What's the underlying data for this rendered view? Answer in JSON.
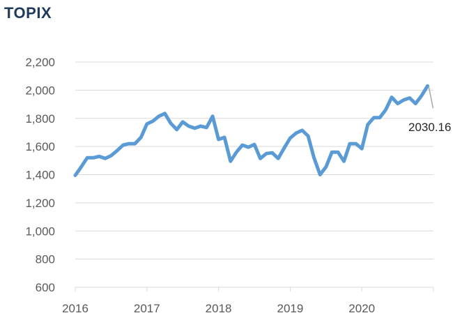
{
  "chart_data": {
    "type": "line",
    "title": "TOPIX",
    "xlabel": "",
    "ylabel": "",
    "ylim": [
      600,
      2200
    ],
    "xlim": [
      2016.0,
      2021.0
    ],
    "y_ticks": [
      600,
      800,
      1000,
      1200,
      1400,
      1600,
      1800,
      2000,
      2200
    ],
    "y_tick_labels": [
      "600",
      "800",
      "1,000",
      "1,200",
      "1,400",
      "1,600",
      "1,800",
      "2,000",
      "2,200"
    ],
    "x_ticks": [
      2016,
      2017,
      2018,
      2019,
      2020
    ],
    "x_tick_labels": [
      "2016",
      "2017",
      "2018",
      "2019",
      "2020"
    ],
    "grid": "horizontal",
    "line_color": "#5b9bd5",
    "series": [
      {
        "x": [
          2016.0,
          2016.083,
          2016.167,
          2016.25,
          2016.333,
          2016.417,
          2016.5,
          2016.583,
          2016.667,
          2016.75,
          2016.833,
          2016.917,
          2017.0,
          2017.083,
          2017.167,
          2017.25,
          2017.333,
          2017.417,
          2017.5,
          2017.583,
          2017.667,
          2017.75,
          2017.833,
          2017.917,
          2018.0,
          2018.083,
          2018.167,
          2018.25,
          2018.333,
          2018.417,
          2018.5,
          2018.583,
          2018.667,
          2018.75,
          2018.833,
          2018.917,
          2019.0,
          2019.083,
          2019.167,
          2019.25,
          2019.333,
          2019.417,
          2019.5,
          2019.583,
          2019.667,
          2019.75,
          2019.833,
          2019.917,
          2020.0,
          2020.083,
          2020.167,
          2020.25,
          2020.333,
          2020.417,
          2020.5,
          2020.583,
          2020.667,
          2020.75,
          2020.833,
          2020.917
        ],
        "values": [
          1395,
          1455,
          1520,
          1520,
          1530,
          1515,
          1535,
          1570,
          1610,
          1620,
          1620,
          1665,
          1760,
          1780,
          1815,
          1835,
          1765,
          1720,
          1775,
          1745,
          1730,
          1745,
          1735,
          1815,
          1650,
          1665,
          1495,
          1560,
          1610,
          1595,
          1615,
          1515,
          1550,
          1555,
          1515,
          1590,
          1660,
          1695,
          1715,
          1675,
          1520,
          1400,
          1455,
          1560,
          1560,
          1495,
          1620,
          1620,
          1585,
          1755,
          1805,
          1805,
          1860,
          1950,
          1905,
          1930,
          1945,
          1905,
          1960,
          2030.16
        ]
      }
    ],
    "annotations": [
      {
        "text": "2030.16",
        "x": 2020.917,
        "y": 2030.16
      }
    ]
  }
}
